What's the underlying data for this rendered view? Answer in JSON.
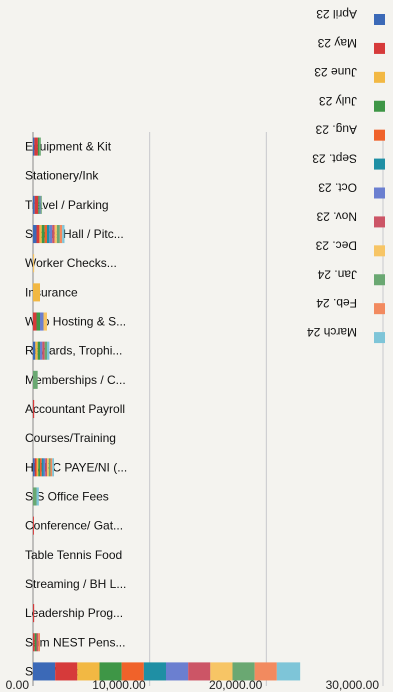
{
  "chart_data": {
    "type": "bar",
    "stacked": true,
    "orientation": "horizontal",
    "title": "",
    "xlabel": "",
    "ylabel": "",
    "xlim": [
      0,
      30000
    ],
    "x_ticks": [
      "0.00",
      "10,000.00",
      "20,000.00",
      "30,000.00"
    ],
    "grid": true,
    "legend_position": "top",
    "categories": [
      "Equipment & Kit",
      "Stationery/Ink",
      "Travel / Parking",
      "Sports Hall / Pitc...",
      "Worker Checks...",
      "Insurance",
      "Web Hosting & S...",
      "Rewards, Trophi...",
      "Memberships / C...",
      "Accountant Payroll",
      "Courses/Training",
      "HMRC PAYE/NI (...",
      "SIS Office Fees",
      "Conference/ Gat...",
      "Table Tennis Food",
      "Streaming / BH L...",
      "Leadership Prog...",
      "Sam NEST Pens...",
      "Staff / Labour &..."
    ],
    "series": [
      {
        "name": "April 23",
        "color": "#3b69b7",
        "values": [
          120,
          0,
          150,
          300,
          0,
          0,
          0,
          200,
          0,
          0,
          0,
          150,
          0,
          0,
          0,
          0,
          0,
          0,
          1900
        ]
      },
      {
        "name": "May 23",
        "color": "#d63a3a",
        "values": [
          300,
          0,
          300,
          250,
          0,
          0,
          300,
          0,
          0,
          100,
          0,
          150,
          0,
          80,
          0,
          0,
          100,
          150,
          1900
        ]
      },
      {
        "name": "June 23",
        "color": "#f2b843",
        "values": [
          0,
          0,
          0,
          200,
          0,
          600,
          0,
          200,
          0,
          0,
          0,
          150,
          0,
          0,
          0,
          0,
          0,
          0,
          1900
        ]
      },
      {
        "name": "July 23",
        "color": "#3e9646",
        "values": [
          100,
          0,
          100,
          250,
          0,
          0,
          300,
          200,
          0,
          0,
          0,
          150,
          0,
          0,
          0,
          0,
          0,
          150,
          1900
        ]
      },
      {
        "name": "Aug. 23",
        "color": "#f0622a",
        "values": [
          0,
          0,
          0,
          200,
          0,
          0,
          0,
          0,
          0,
          0,
          0,
          150,
          0,
          0,
          0,
          0,
          0,
          0,
          1900
        ]
      },
      {
        "name": "Sept. 23",
        "color": "#1f8fa4",
        "values": [
          0,
          0,
          0,
          200,
          0,
          0,
          0,
          0,
          0,
          0,
          0,
          150,
          0,
          0,
          0,
          0,
          0,
          0,
          1900
        ]
      },
      {
        "name": "Oct. 23",
        "color": "#6b7fd0",
        "values": [
          0,
          0,
          100,
          250,
          0,
          0,
          300,
          200,
          0,
          0,
          0,
          150,
          0,
          0,
          0,
          0,
          0,
          0,
          1900
        ]
      },
      {
        "name": "Nov. 23",
        "color": "#cc5566",
        "values": [
          0,
          0,
          0,
          200,
          0,
          0,
          0,
          200,
          0,
          0,
          0,
          150,
          0,
          0,
          0,
          0,
          0,
          150,
          1900
        ]
      },
      {
        "name": "Dec. 23",
        "color": "#f7c565",
        "values": [
          0,
          0,
          0,
          200,
          100,
          0,
          300,
          0,
          0,
          0,
          0,
          150,
          0,
          0,
          0,
          0,
          0,
          0,
          1900
        ]
      },
      {
        "name": "Jan. 24",
        "color": "#6aa872",
        "values": [
          150,
          0,
          100,
          250,
          0,
          0,
          0,
          200,
          400,
          0,
          0,
          150,
          300,
          0,
          0,
          0,
          0,
          0,
          1900
        ]
      },
      {
        "name": "Feb. 24",
        "color": "#f28a5f",
        "values": [
          0,
          0,
          0,
          200,
          0,
          0,
          0,
          0,
          0,
          0,
          0,
          150,
          0,
          0,
          0,
          0,
          0,
          150,
          1900
        ]
      },
      {
        "name": "March 24",
        "color": "#7ec5d8",
        "values": [
          0,
          0,
          0,
          200,
          0,
          0,
          0,
          200,
          0,
          0,
          0,
          150,
          200,
          0,
          0,
          0,
          0,
          0,
          2000
        ]
      }
    ]
  }
}
